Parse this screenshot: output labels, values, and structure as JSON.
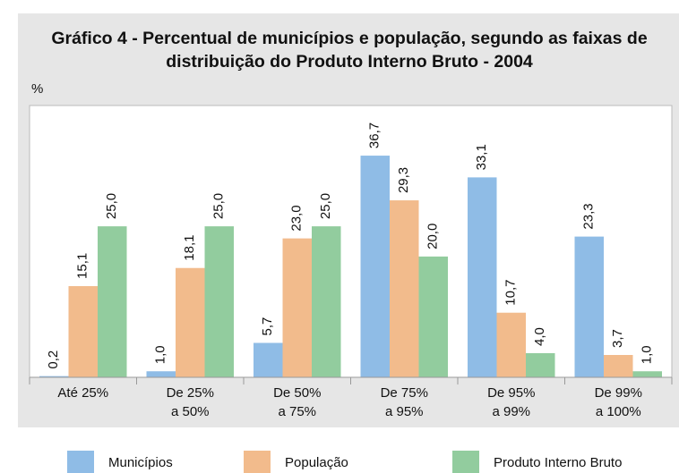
{
  "chart_data": {
    "type": "bar",
    "title": "Gráfico 4 - Percentual de municípios e população, segundo as faixas de distribuição do Produto Interno Bruto - 2004",
    "y_label": "%",
    "categories": [
      "Até 25%",
      "De 25%\na 50%",
      "De 50%\na 75%",
      "De 75%\na 95%",
      "De 95%\na 99%",
      "De 99%\na 100%"
    ],
    "series": [
      {
        "name": "Municípios",
        "color": "#8fbce6",
        "values": [
          0.2,
          1.0,
          5.7,
          36.7,
          33.1,
          23.3
        ],
        "value_labels": [
          "0,2",
          "1,0",
          "5,7",
          "36,7",
          "33,1",
          "23,3"
        ]
      },
      {
        "name": "População",
        "color": "#f2bb8c",
        "values": [
          15.1,
          18.1,
          23.0,
          29.3,
          10.7,
          3.7
        ],
        "value_labels": [
          "15,1",
          "18,1",
          "23,0",
          "29,3",
          "10,7",
          "3,7"
        ]
      },
      {
        "name": "Produto Interno Bruto",
        "color": "#92cc9e",
        "values": [
          25.0,
          25.0,
          25.0,
          20.0,
          4.0,
          1.0
        ],
        "value_labels": [
          "25,0",
          "25,0",
          "25,0",
          "20,0",
          "4,0",
          "1,0"
        ]
      }
    ],
    "ylim": [
      0,
      45
    ]
  }
}
